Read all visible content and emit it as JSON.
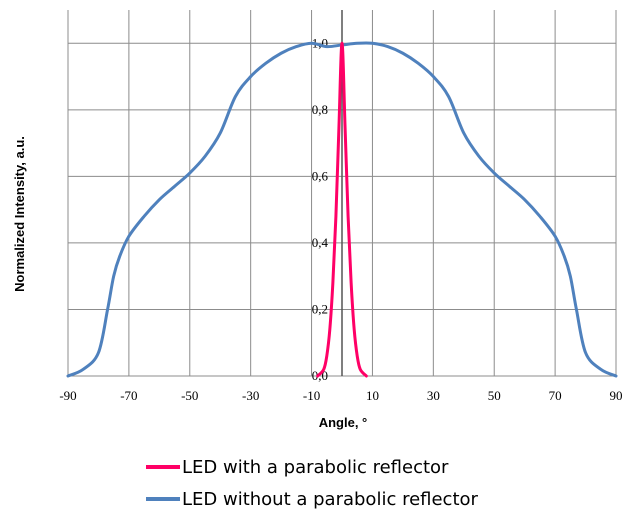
{
  "chart_data": {
    "type": "line",
    "xlabel": "Angle, °",
    "ylabel": "Normalized Intensity, a.u.",
    "xlim": [
      -90,
      90
    ],
    "ylim": [
      0,
      1.0
    ],
    "x_ticks": [
      "-90",
      "-70",
      "-50",
      "-30",
      "-10",
      "10",
      "30",
      "50",
      "70",
      "90"
    ],
    "y_ticks": [
      "0,0",
      "0,2",
      "0,4",
      "0,6",
      "0,8",
      "1,0"
    ],
    "grid": true,
    "legend_position": "bottom",
    "series": [
      {
        "name": "LED with a parabolic reflector",
        "color": "#ff0066",
        "x": [
          -8,
          -6,
          -5,
          -4,
          -3,
          -2,
          -1,
          0,
          1,
          2,
          3,
          4,
          5,
          6,
          8
        ],
        "y": [
          0.0,
          0.02,
          0.06,
          0.14,
          0.28,
          0.48,
          0.75,
          1.0,
          0.75,
          0.48,
          0.28,
          0.14,
          0.06,
          0.02,
          0.0
        ]
      },
      {
        "name": "LED without a parabolic reflector",
        "color": "#4f81bd",
        "x": [
          -90,
          -85,
          -80,
          -77,
          -75,
          -73,
          -70,
          -65,
          -60,
          -55,
          -50,
          -45,
          -40,
          -35,
          -30,
          -25,
          -20,
          -15,
          -10,
          -5,
          0,
          5,
          10,
          15,
          20,
          25,
          30,
          35,
          40,
          45,
          50,
          55,
          60,
          65,
          70,
          73,
          75,
          77,
          80,
          85,
          90
        ],
        "y": [
          0.0,
          0.02,
          0.07,
          0.2,
          0.3,
          0.36,
          0.42,
          0.48,
          0.53,
          0.57,
          0.61,
          0.66,
          0.73,
          0.84,
          0.9,
          0.94,
          0.97,
          0.99,
          1.0,
          0.99,
          0.995,
          1.0,
          1.0,
          0.99,
          0.97,
          0.94,
          0.9,
          0.84,
          0.73,
          0.66,
          0.61,
          0.57,
          0.53,
          0.48,
          0.42,
          0.36,
          0.3,
          0.2,
          0.07,
          0.02,
          0.0
        ]
      }
    ]
  }
}
